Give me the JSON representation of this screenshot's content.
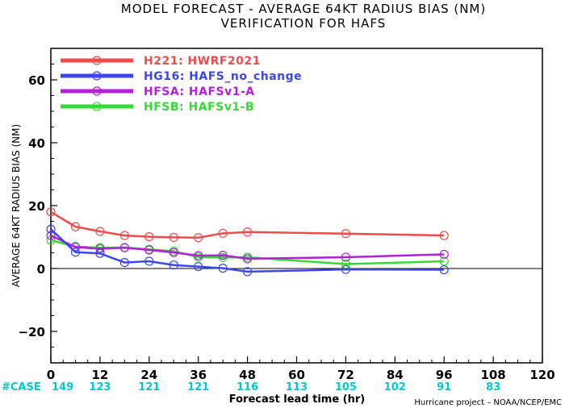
{
  "chart_data": {
    "type": "line",
    "title": "MODEL FORECAST - AVERAGE 64KT RADIUS BIAS (NM)",
    "subtitle": "VERIFICATION FOR HAFS",
    "xlabel": "Forecast lead time (hr)",
    "ylabel": "AVERAGE 64KT RADIUS BIAS (NM)",
    "xlim": [
      0,
      120
    ],
    "ylim": [
      -30,
      70
    ],
    "x_ticks": [
      "0",
      "12",
      "24",
      "36",
      "48",
      "60",
      "72",
      "84",
      "96",
      "108",
      "120"
    ],
    "y_ticks": [
      "60",
      "40",
      "20",
      "0",
      "−20"
    ],
    "zero_line": true,
    "legend_position": "top-left",
    "series": [
      {
        "name": "H221: HWRF2021",
        "color": "#f04b4b",
        "x": [
          0,
          6,
          12,
          18,
          24,
          30,
          36,
          42,
          48,
          72,
          96
        ],
        "values": [
          18,
          13.3,
          11.8,
          10.5,
          10.1,
          9.9,
          9.8,
          11.2,
          11.6,
          11.1,
          10.5
        ]
      },
      {
        "name": "HG16: HAFS_no_change",
        "color": "#3c46f0",
        "x": [
          0,
          6,
          12,
          18,
          24,
          30,
          36,
          42,
          48,
          72,
          96
        ],
        "values": [
          12.5,
          5.2,
          4.8,
          1.9,
          2.3,
          1.1,
          0.6,
          0.1,
          -1.0,
          -0.3,
          -0.4
        ]
      },
      {
        "name": "HFSA: HAFSv1-A",
        "color": "#b41edc",
        "x": [
          0,
          6,
          12,
          18,
          24,
          30,
          36,
          42,
          48,
          72,
          96
        ],
        "values": [
          10.5,
          6.8,
          6.3,
          6.6,
          5.9,
          5.1,
          4.1,
          4.2,
          3.1,
          3.6,
          4.5
        ]
      },
      {
        "name": "HFSB: HAFSv1-B",
        "color": "#32dc32",
        "x": [
          0,
          6,
          12,
          18,
          24,
          30,
          36,
          42,
          48,
          72,
          96
        ],
        "values": [
          9.0,
          7.0,
          6.6,
          6.7,
          6.1,
          5.5,
          3.6,
          3.5,
          3.6,
          1.4,
          2.3
        ]
      }
    ],
    "case_counts": {
      "label": "#CASE",
      "x": [
        0,
        12,
        24,
        36,
        48,
        60,
        72,
        84,
        96,
        108
      ],
      "values": [
        "149",
        "123",
        "121",
        "121",
        "116",
        "113",
        "105",
        "102",
        "91",
        "83"
      ]
    },
    "credit": "Hurricane project – NOAA/NCEP/EMC"
  }
}
